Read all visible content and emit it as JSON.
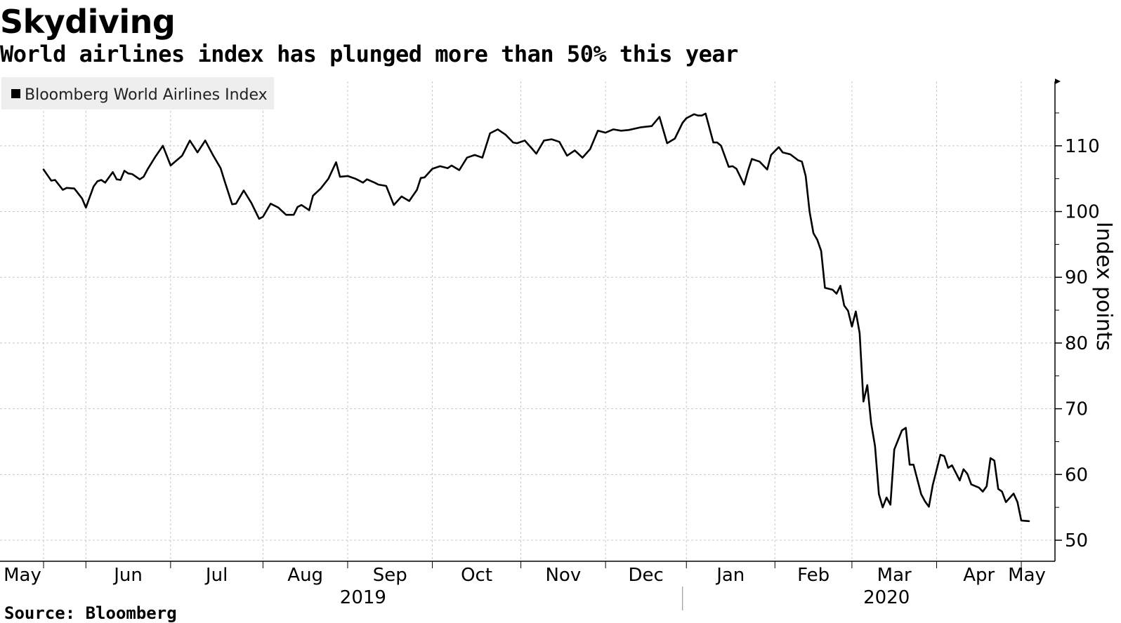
{
  "header": {
    "title": "Skydiving",
    "subtitle": "World airlines index has plunged more than 50% this year"
  },
  "footer": {
    "source": "Source: Bloomberg"
  },
  "colors": {
    "line": "#000000",
    "grid": "#c8c8c8",
    "legend_bg": "#eeeeee"
  },
  "chart_data": {
    "type": "line",
    "title": "Skydiving",
    "subtitle": "World airlines index has plunged more than 50% this year",
    "ylabel": "Index points",
    "xlabel": "",
    "ylim": [
      46.8,
      119.8
    ],
    "yticks": [
      50,
      60,
      70,
      80,
      90,
      100,
      110
    ],
    "grid": true,
    "legend": {
      "position": "top-left",
      "entries": [
        "Bloomberg World Airlines Index"
      ]
    },
    "x_domain": [
      0,
      256
    ],
    "month_ticks": [
      {
        "label": "May",
        "t": 0
      },
      {
        "label": "Jun",
        "t": 11
      },
      {
        "label": "Jul",
        "t": 33
      },
      {
        "label": "Aug",
        "t": 57
      },
      {
        "label": "Sep",
        "t": 79
      },
      {
        "label": "Oct",
        "t": 101
      },
      {
        "label": "Nov",
        "t": 124
      },
      {
        "label": "Dec",
        "t": 146
      },
      {
        "label": "Jan",
        "t": 167
      },
      {
        "label": "Feb",
        "t": 190
      },
      {
        "label": "Mar",
        "t": 210
      },
      {
        "label": "Apr",
        "t": 232
      },
      {
        "label": "May",
        "t": 254
      }
    ],
    "year_labels": [
      {
        "label": "2019",
        "t": 83
      },
      {
        "label": "2020",
        "t": 219
      }
    ],
    "year_separator_t": 166,
    "series": [
      {
        "name": "Bloomberg World Airlines Index",
        "x": [
          0,
          2,
          3,
          5,
          6,
          8,
          10,
          11,
          13,
          14,
          15,
          16,
          18,
          19,
          20,
          21,
          22,
          23,
          25,
          26,
          27,
          29,
          31,
          33,
          36,
          38,
          40,
          42,
          44,
          46,
          47,
          49,
          50,
          52,
          54,
          56,
          57,
          59,
          61,
          63,
          65,
          66,
          67,
          69,
          70,
          72,
          74,
          76,
          77,
          79,
          81,
          83,
          84,
          86,
          87,
          89,
          91,
          93,
          95,
          97,
          98,
          99,
          101,
          103,
          105,
          106,
          108,
          110,
          112,
          114,
          116,
          118,
          120,
          122,
          123,
          125,
          127,
          128,
          130,
          132,
          134,
          136,
          138,
          140,
          142,
          144,
          146,
          148,
          150,
          152,
          155,
          158,
          160,
          162,
          164,
          166,
          167,
          169,
          170,
          171,
          172,
          174,
          175,
          176,
          178,
          179,
          180,
          182,
          183,
          184,
          186,
          188,
          189,
          191,
          192,
          194,
          196,
          197,
          198,
          199,
          200,
          201,
          202,
          203,
          205,
          206,
          207,
          208,
          209,
          210,
          211,
          212,
          213,
          214,
          215,
          216,
          217,
          218,
          219,
          220,
          221,
          223,
          224,
          225,
          226,
          228,
          229,
          230,
          231,
          233,
          234,
          235,
          236,
          238,
          239,
          240,
          241,
          243,
          244,
          245,
          246,
          247,
          248,
          249,
          250,
          252,
          253,
          254,
          256
        ],
        "values": [
          106.4,
          104.7,
          104.8,
          103.3,
          103.6,
          103.5,
          102.0,
          100.6,
          103.8,
          104.6,
          104.8,
          104.4,
          106.0,
          104.9,
          104.8,
          106.2,
          105.8,
          105.7,
          104.9,
          105.3,
          106.4,
          108.3,
          110.0,
          107.0,
          108.5,
          110.8,
          109.0,
          110.8,
          108.6,
          106.6,
          104.7,
          101.1,
          101.2,
          103.2,
          101.3,
          98.9,
          99.2,
          101.2,
          100.6,
          99.5,
          99.5,
          100.7,
          101.0,
          100.2,
          102.4,
          103.5,
          105.0,
          107.5,
          105.3,
          105.4,
          105.0,
          104.4,
          104.9,
          104.4,
          104.1,
          103.9,
          101.0,
          102.3,
          101.6,
          103.3,
          105.1,
          105.2,
          106.5,
          106.9,
          106.6,
          107.0,
          106.3,
          108.2,
          108.6,
          108.2,
          111.9,
          112.5,
          111.7,
          110.5,
          110.4,
          110.8,
          109.5,
          108.8,
          110.8,
          111.0,
          110.6,
          108.5,
          109.3,
          108.2,
          109.5,
          112.3,
          112.0,
          112.5,
          112.3,
          112.4,
          112.8,
          113.0,
          114.4,
          110.4,
          111.1,
          113.5,
          114.2,
          114.8,
          114.6,
          114.6,
          114.9,
          110.5,
          110.5,
          110.0,
          106.8,
          106.9,
          106.5,
          104.1,
          106.2,
          108.0,
          107.6,
          106.4,
          108.6,
          109.8,
          109.0,
          108.7,
          107.8,
          107.6,
          105.4,
          100.0,
          96.7,
          95.7,
          94.0,
          88.4,
          88.1,
          87.5,
          88.7,
          85.7,
          84.9,
          82.5,
          84.8,
          81.5,
          71.1,
          73.6,
          67.8,
          64.3,
          57.0,
          55.0,
          56.5,
          55.4,
          63.8,
          66.7,
          67.1,
          61.5,
          61.5,
          57.0,
          55.9,
          55.1,
          58.4,
          63.0,
          62.8,
          61.0,
          61.4,
          59.1,
          60.8,
          60.1,
          58.5,
          58.0,
          57.4,
          58.2,
          62.5,
          62.1,
          57.8,
          57.4,
          55.8,
          57.1,
          55.8,
          53.0,
          52.9
        ]
      }
    ]
  }
}
